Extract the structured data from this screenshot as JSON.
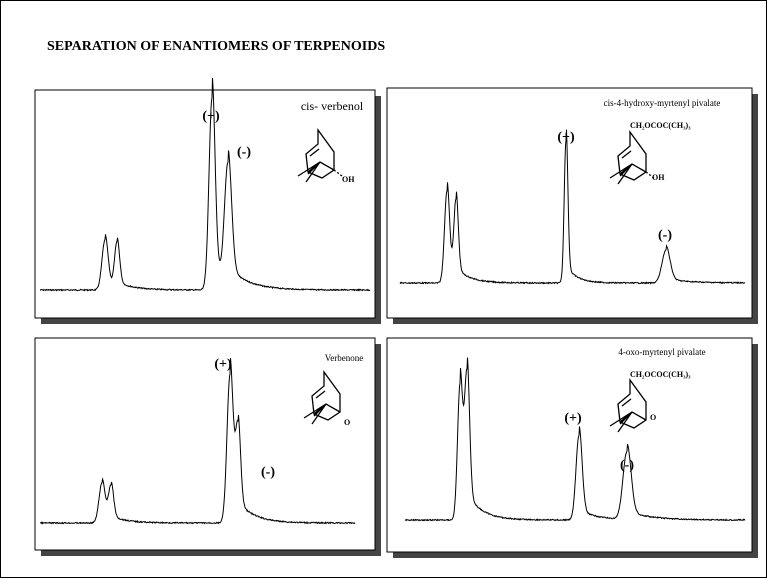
{
  "title": "SEPARATION OF ENANTIOMERS OF TERPENOIDS",
  "panels": [
    {
      "compound": "cis- verbenol",
      "peaks": [
        "(+)",
        "(-)"
      ],
      "substituent": "OH"
    },
    {
      "compound": "cis-4-hydroxy-myrtenyl pivalate",
      "side_chain": "CH₂OCOC(CH₃)₃",
      "peaks": [
        "(+)",
        "(-)"
      ],
      "substituent": "OH"
    },
    {
      "compound": "Verbenone",
      "peaks": [
        "(+)",
        "(-)"
      ],
      "substituent": "O"
    },
    {
      "compound": "4-oxo-myrtenyl pivalate",
      "side_chain": "CH₂OCOC(CH₃)₃",
      "peaks": [
        "(+)",
        "(-)"
      ],
      "substituent": "O"
    }
  ]
}
